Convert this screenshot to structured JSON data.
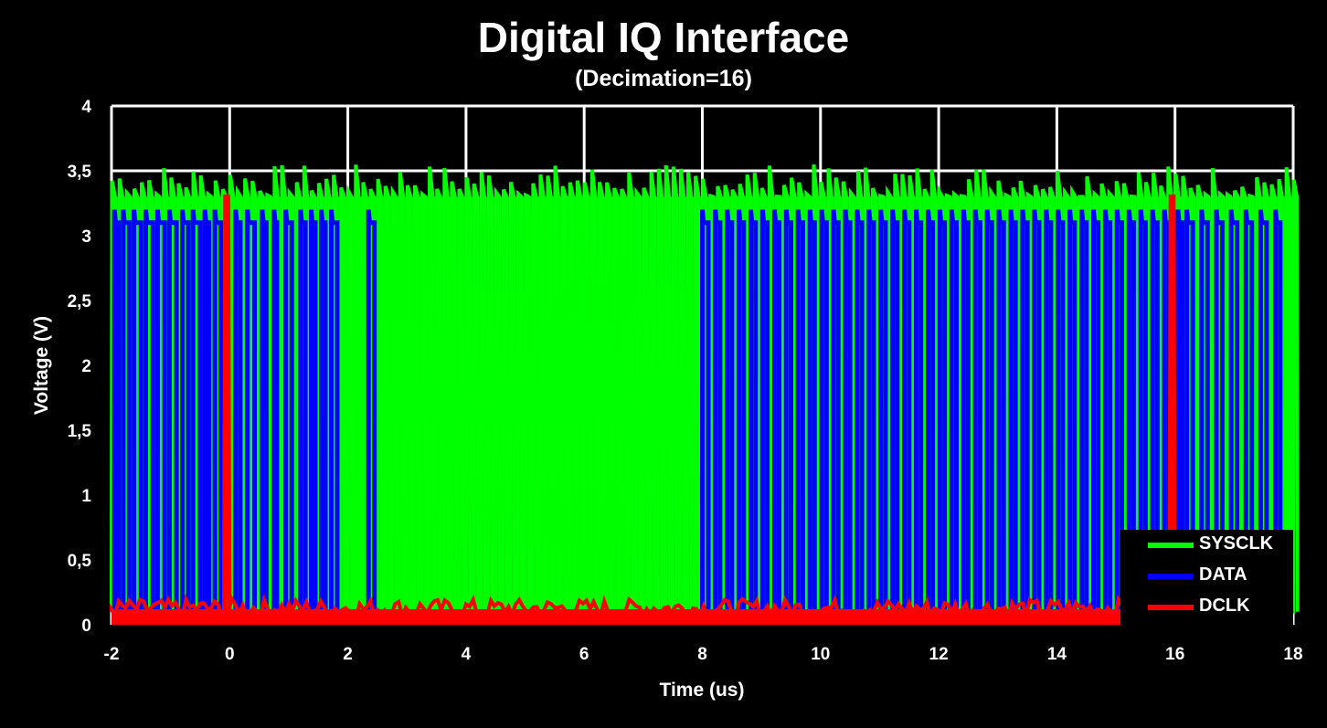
{
  "chart_data": {
    "type": "line",
    "title": "Digital IQ Interface",
    "subtitle": "(Decimation=16)",
    "xlabel": "Time (us)",
    "ylabel": "Voltage (V)",
    "xlim": [
      -2,
      18
    ],
    "ylim": [
      0,
      4
    ],
    "xticks": [
      "-2",
      "0",
      "2",
      "4",
      "6",
      "8",
      "10",
      "12",
      "14",
      "16",
      "18"
    ],
    "yticks": [
      "0",
      "0,5",
      "1",
      "1,5",
      "2",
      "2,5",
      "3",
      "3,5",
      "4"
    ],
    "grid": "vertical and horizontal major lines",
    "legend_position": "bottom-right",
    "series": [
      {
        "name": "SYSCLK",
        "color": "#00ff00",
        "description_values": {
          "low": 0.1,
          "high": 3.3,
          "overshoot_high": 3.55,
          "period_us": 0.125
        }
      },
      {
        "name": "DATA",
        "color": "#0000ff",
        "description_values": {
          "low": 0.1,
          "high": 3.1,
          "overshoot_high": 3.2
        },
        "transitions_us": [
          -1.95,
          -1.88,
          -1.8,
          -1.7,
          -1.62,
          -1.5,
          -1.42,
          -1.3,
          -1.22,
          -1.1,
          -1.02,
          -0.9,
          -0.8,
          -0.7,
          -0.62,
          -0.5,
          -0.42,
          -0.35,
          -0.25,
          -0.15,
          0.1,
          0.18,
          0.3,
          0.42,
          0.55,
          0.62,
          0.75,
          0.8,
          0.95,
          1.05,
          1.2,
          1.28,
          1.38,
          1.45,
          1.55,
          1.62,
          1.72,
          1.82,
          2.35,
          2.45,
          8.0,
          8.1,
          8.22,
          8.3,
          8.42,
          8.5,
          8.62,
          8.7,
          8.82,
          8.9,
          9.02,
          9.1,
          9.22,
          9.3,
          9.42,
          9.5,
          9.62,
          9.7,
          9.82,
          9.9,
          10.02,
          10.1,
          10.22,
          10.3,
          10.42,
          10.5,
          10.62,
          10.7,
          10.82,
          10.9,
          11.02,
          11.1,
          11.22,
          11.3,
          11.42,
          11.5,
          11.62,
          11.7,
          11.82,
          11.9,
          12.02,
          12.1,
          12.22,
          12.3,
          12.42,
          12.5,
          12.62,
          12.7,
          12.82,
          12.9,
          13.02,
          13.1,
          13.22,
          13.3,
          13.42,
          13.5,
          13.62,
          13.7,
          13.82,
          13.9,
          14.02,
          14.1,
          14.22,
          14.3,
          14.42,
          14.5,
          14.62,
          14.7,
          14.82,
          14.9,
          15.02,
          15.1,
          15.22,
          15.3,
          15.42,
          15.5,
          15.62,
          15.7,
          15.82,
          15.9,
          16.05,
          16.12,
          16.2,
          16.3,
          16.45,
          16.55,
          16.7,
          16.8,
          16.95,
          17.05,
          17.2,
          17.3,
          17.45,
          17.55,
          17.7,
          17.78,
          17.9
        ]
      },
      {
        "name": "DCLK",
        "color": "#ff0000",
        "description_values": {
          "low": 0.1,
          "high": 3.3
        },
        "pulses_us": [
          -0.05,
          15.95
        ]
      }
    ]
  }
}
